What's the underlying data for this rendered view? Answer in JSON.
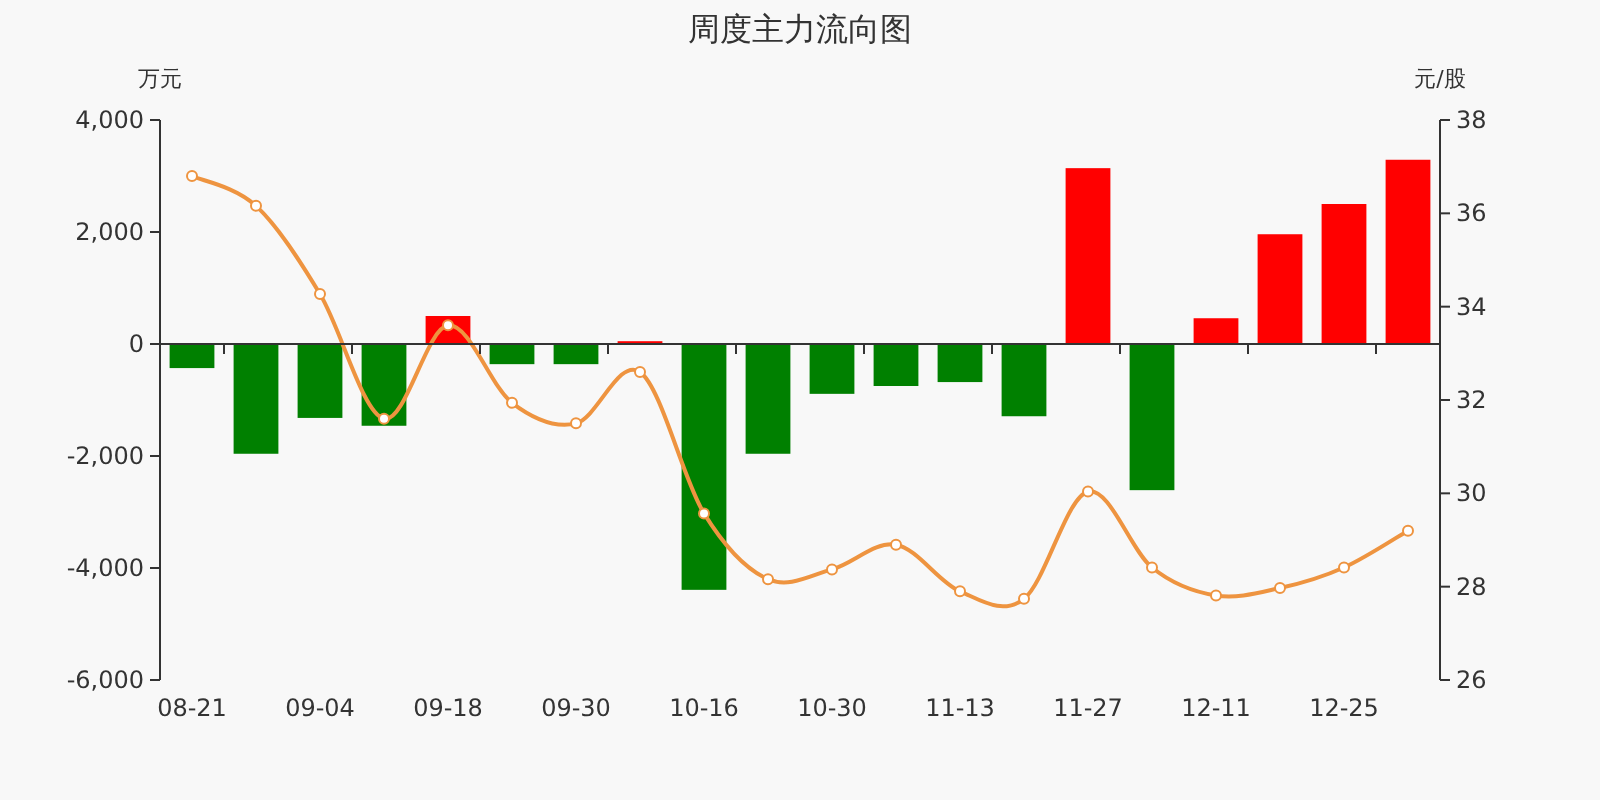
{
  "chart_data": {
    "type": "bar",
    "title": "周度主力流向图",
    "ylabel": "万元",
    "y2label": "元/股",
    "categories": [
      "08-21",
      null,
      "09-04",
      null,
      "09-18",
      null,
      "09-30",
      null,
      "10-16",
      null,
      "10-30",
      null,
      "11-13",
      null,
      "11-27",
      null,
      "12-11",
      null,
      "12-25",
      null
    ],
    "series": [
      {
        "values": [
          -430,
          -1960,
          -1320,
          -1460,
          500,
          -360,
          -360,
          50,
          -4390,
          -1960,
          -890,
          -750,
          -680,
          -1290,
          3140,
          -2610,
          460,
          1960,
          2500,
          3290
        ],
        "colors": [
          "#008000",
          "#008000",
          "#008000",
          "#008000",
          "#ff0000",
          "#008000",
          "#008000",
          "#ff0000",
          "#008000",
          "#008000",
          "#008000",
          "#008000",
          "#008000",
          "#008000",
          "#ff0000",
          "#008000",
          "#ff0000",
          "#ff0000",
          "#ff0000",
          "#ff0000"
        ]
      },
      {
        "type": "line",
        "axis": "y2",
        "color": "#ee9440",
        "marker": "circle",
        "values": [
          36.8,
          36.16,
          34.27,
          31.6,
          33.6,
          31.94,
          31.5,
          32.6,
          29.57,
          28.16,
          28.37,
          28.9,
          27.9,
          27.74,
          30.04,
          28.41,
          27.81,
          27.97,
          28.41,
          29.2
        ]
      }
    ],
    "ylim": [
      -6000,
      4000
    ],
    "yticks": [
      {
        "value": -6000,
        "label": "-6,000"
      },
      {
        "value": -4000,
        "label": "-4,000"
      },
      {
        "value": -2000,
        "label": "-2,000"
      },
      0,
      {
        "value": 2000,
        "label": "2,000"
      },
      {
        "value": 4000,
        "label": "4,000"
      }
    ],
    "y2lim": [
      26,
      38
    ],
    "y2ticks": [
      26,
      28,
      30,
      32,
      34,
      36,
      38
    ]
  }
}
